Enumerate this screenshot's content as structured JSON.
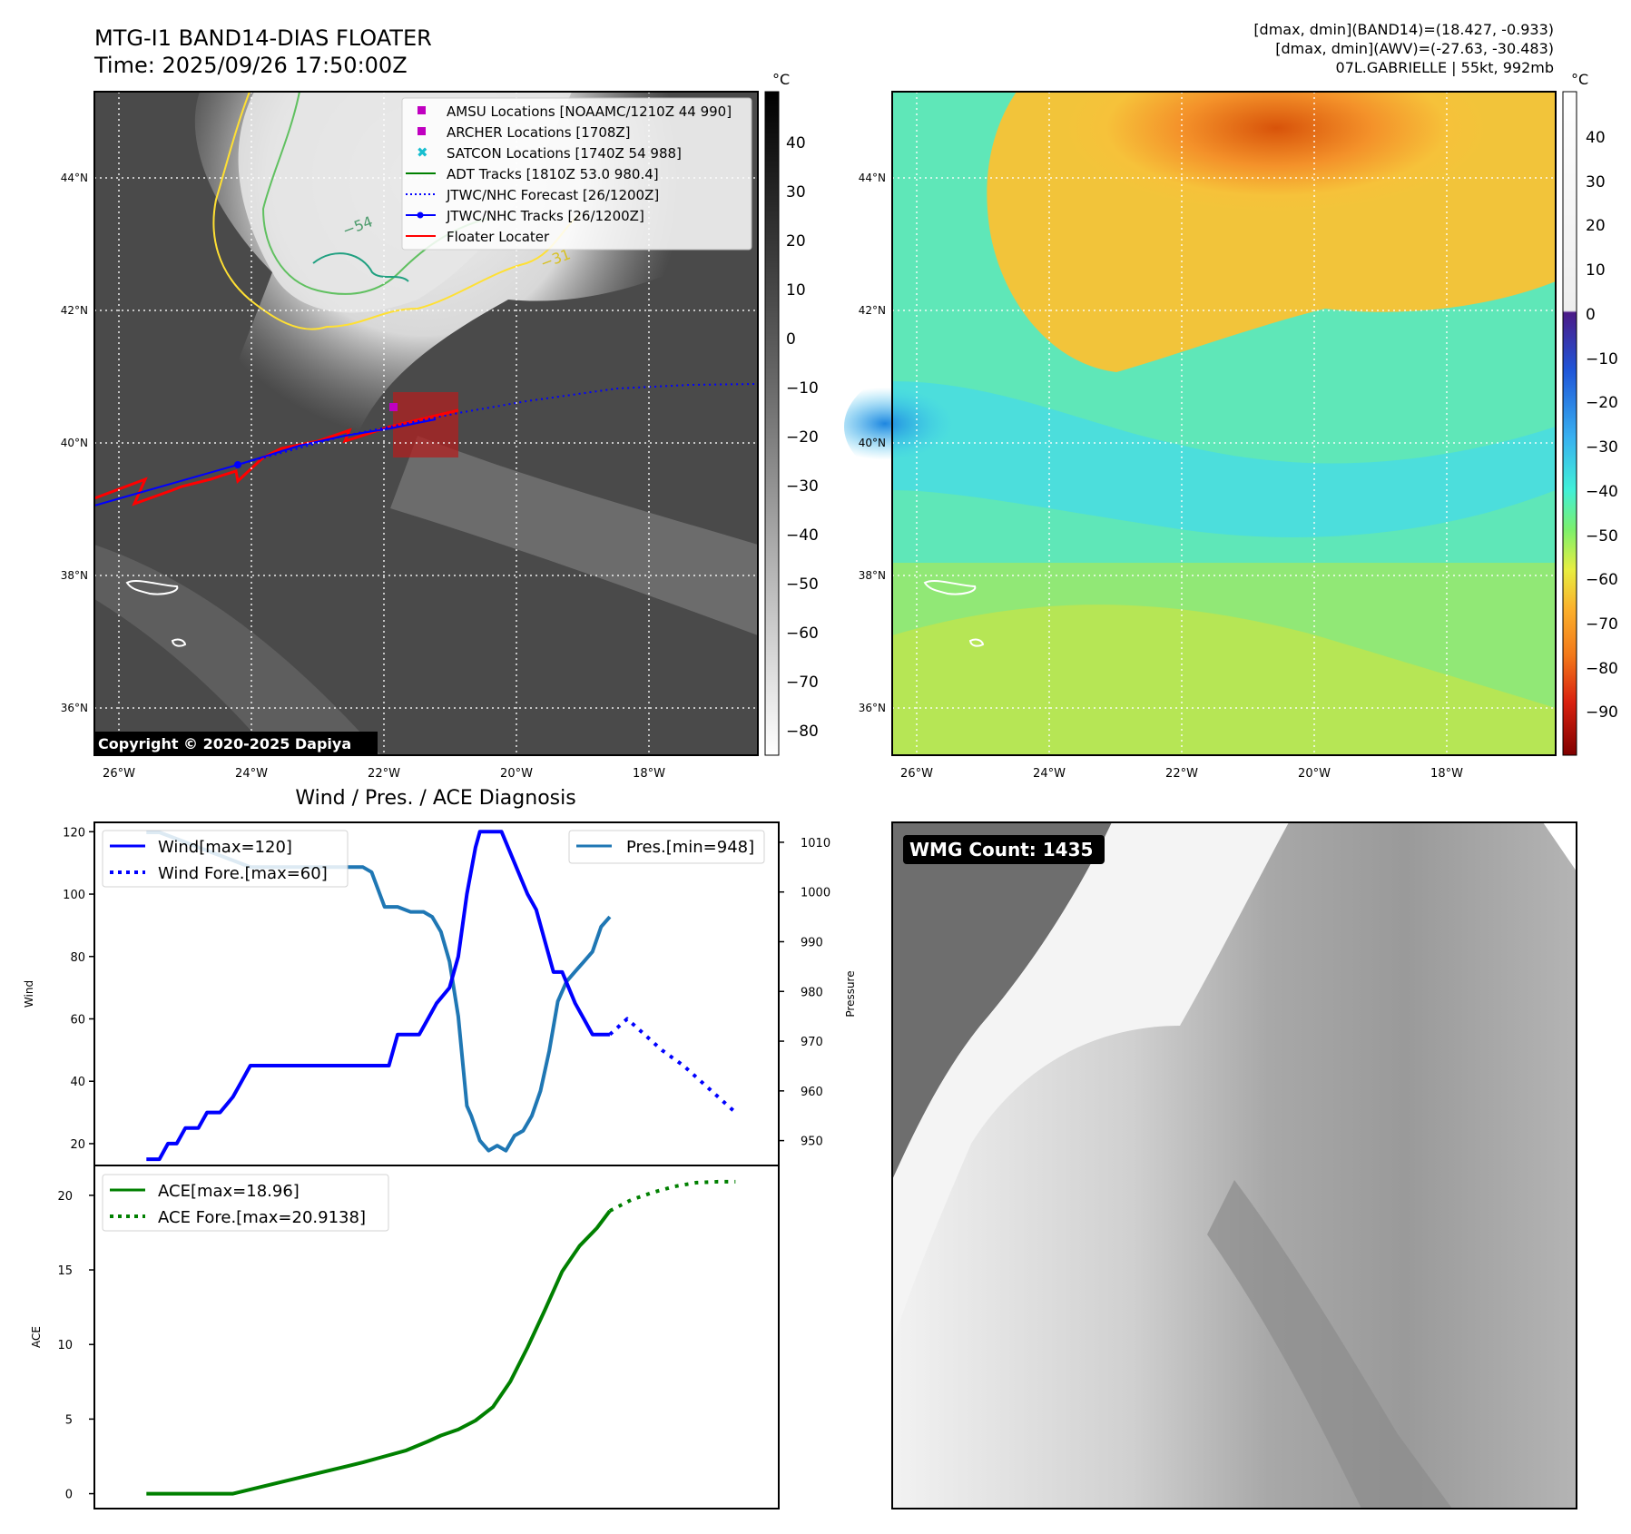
{
  "header": {
    "title_line1": "MTG-I1 BAND14-DIAS FLOATER",
    "title_line2": "Time: 2025/09/26 17:50:00Z",
    "right_line1": "[dmax, dmin](BAND14)=(18.427, -0.933)",
    "right_line2": "[dmax, dmin](AWV)=(-27.63, -30.483)",
    "right_line3": "07L.GABRIELLE | 55kt, 992mb"
  },
  "maps": {
    "lat_ticks": [
      "44°N",
      "42°N",
      "40°N",
      "38°N",
      "36°N"
    ],
    "lon_ticks": [
      "26°W",
      "24°W",
      "22°W",
      "20°W",
      "18°W"
    ],
    "copyright": "Copyright © 2020-2025 Dapiya",
    "contour_labels": [
      "−54",
      "−31"
    ],
    "legend": [
      {
        "label": "AMSU Locations [NOAAMC/1210Z 44 990]",
        "marker": "square",
        "color": "#c000c0"
      },
      {
        "label": "ARCHER Locations [1708Z]",
        "marker": "square",
        "color": "#c000c0"
      },
      {
        "label": "SATCON Locations [1740Z 54 988]",
        "marker": "x",
        "color": "#17becf"
      },
      {
        "label": "ADT Tracks [1810Z 53.0 980.4]",
        "marker": "line",
        "color": "#008000"
      },
      {
        "label": "JTWC/NHC Forecast [26/1200Z]",
        "marker": "dotted",
        "color": "#0000ff"
      },
      {
        "label": "JTWC/NHC Tracks [26/1200Z]",
        "marker": "line-dot",
        "color": "#0000ff"
      },
      {
        "label": "Floater Locater",
        "marker": "line",
        "color": "#ff0000"
      }
    ]
  },
  "colorbars": {
    "unit": "°C",
    "gray_ticks": [
      "40",
      "30",
      "20",
      "10",
      "0",
      "−10",
      "−20",
      "−30",
      "−40",
      "−50",
      "−60",
      "−70",
      "−80"
    ],
    "color_ticks": [
      "40",
      "30",
      "20",
      "10",
      "0",
      "−10",
      "−20",
      "−30",
      "−40",
      "−50",
      "−60",
      "−70",
      "−80",
      "−90"
    ]
  },
  "diagnosis": {
    "title": "Wind / Pres. / ACE Diagnosis",
    "wind_ylabel": "Wind",
    "pres_ylabel": "Pressure",
    "ace_ylabel": "ACE",
    "wind_ticks": [
      "120",
      "100",
      "80",
      "60",
      "40",
      "20"
    ],
    "pres_ticks": [
      "1010",
      "1000",
      "990",
      "980",
      "970",
      "960",
      "950"
    ],
    "ace_ticks": [
      "20",
      "15",
      "10",
      "5",
      "0"
    ],
    "legend_wind": "Wind[max=120]",
    "legend_wind_fore": "Wind Fore.[max=60]",
    "legend_pres": "Pres.[min=948]",
    "legend_ace": "ACE[max=18.96]",
    "legend_ace_fore": "ACE Fore.[max=20.9138]"
  },
  "wmg": {
    "label": "WMG Count: 1435"
  },
  "chart_data": [
    {
      "type": "line",
      "title": "Wind / Pres. / ACE Diagnosis",
      "ylabel": "Wind",
      "ylim": [
        13,
        123
      ],
      "series": [
        {
          "name": "Wind[max=120]",
          "color": "#0000ff",
          "style": "solid",
          "x": [
            0,
            3,
            5,
            7,
            9,
            11,
            12,
            14,
            17,
            20,
            22,
            24,
            27,
            30,
            33,
            36,
            40,
            43,
            46,
            50,
            52,
            56,
            58,
            60,
            63,
            65,
            67,
            70,
            72,
            74,
            76,
            77,
            78,
            80,
            82,
            85,
            88,
            90,
            92,
            94,
            96,
            99,
            101,
            103,
            105,
            107
          ],
          "values": [
            15,
            15,
            20,
            20,
            25,
            25,
            25,
            30,
            30,
            35,
            40,
            45,
            45,
            45,
            45,
            45,
            45,
            45,
            45,
            45,
            45,
            45,
            55,
            55,
            55,
            60,
            65,
            70,
            80,
            100,
            115,
            120,
            120,
            120,
            120,
            110,
            100,
            95,
            85,
            75,
            75,
            65,
            60,
            55,
            55,
            55
          ]
        },
        {
          "name": "Wind Fore.[max=60]",
          "color": "#0000ff",
          "style": "dotted",
          "x": [
            107,
            111,
            115,
            119,
            124,
            128,
            132,
            136
          ],
          "values": [
            55,
            60,
            55,
            50,
            45,
            40,
            35,
            30
          ]
        },
        {
          "name": "Pres.[min=948]",
          "color": "#1f77b4",
          "style": "solid",
          "axis": "right",
          "ylim": [
            945,
            1014
          ],
          "x": [
            0,
            3,
            6,
            9,
            12,
            15,
            18,
            21,
            24,
            27,
            30,
            33,
            36,
            40,
            44,
            48,
            50,
            52,
            55,
            58,
            61,
            64,
            66,
            68,
            70,
            72,
            74,
            75,
            77,
            79,
            81,
            83,
            85,
            87,
            89,
            91,
            93,
            95,
            97,
            99,
            101,
            103,
            105,
            107
          ],
          "values": [
            1012,
            1012,
            1011,
            1010,
            1009,
            1008,
            1007,
            1006,
            1005,
            1005,
            1005,
            1005,
            1005,
            1005,
            1005,
            1005,
            1005,
            1004,
            997,
            997,
            996,
            996,
            995,
            992,
            986,
            975,
            957,
            955,
            950,
            948,
            949,
            948,
            951,
            952,
            955,
            960,
            968,
            978,
            982,
            984,
            986,
            988,
            993,
            995
          ]
        }
      ]
    },
    {
      "type": "line",
      "ylabel": "ACE",
      "ylim": [
        -1,
        22
      ],
      "series": [
        {
          "name": "ACE[max=18.96]",
          "color": "#008000",
          "style": "solid",
          "x": [
            0,
            10,
            20,
            30,
            40,
            50,
            55,
            60,
            65,
            68,
            72,
            76,
            80,
            84,
            88,
            92,
            96,
            100,
            104,
            107
          ],
          "values": [
            0,
            0,
            0,
            0.7,
            1.4,
            2.1,
            2.5,
            2.9,
            3.5,
            3.9,
            4.3,
            4.9,
            5.8,
            7.5,
            9.8,
            12.3,
            14.9,
            16.6,
            17.8,
            18.96
          ]
        },
        {
          "name": "ACE Fore.[max=20.9138]",
          "color": "#008000",
          "style": "dotted",
          "x": [
            107,
            112,
            117,
            122,
            127,
            132,
            136
          ],
          "values": [
            18.96,
            19.7,
            20.2,
            20.6,
            20.85,
            20.9138,
            20.9138
          ]
        }
      ]
    }
  ]
}
